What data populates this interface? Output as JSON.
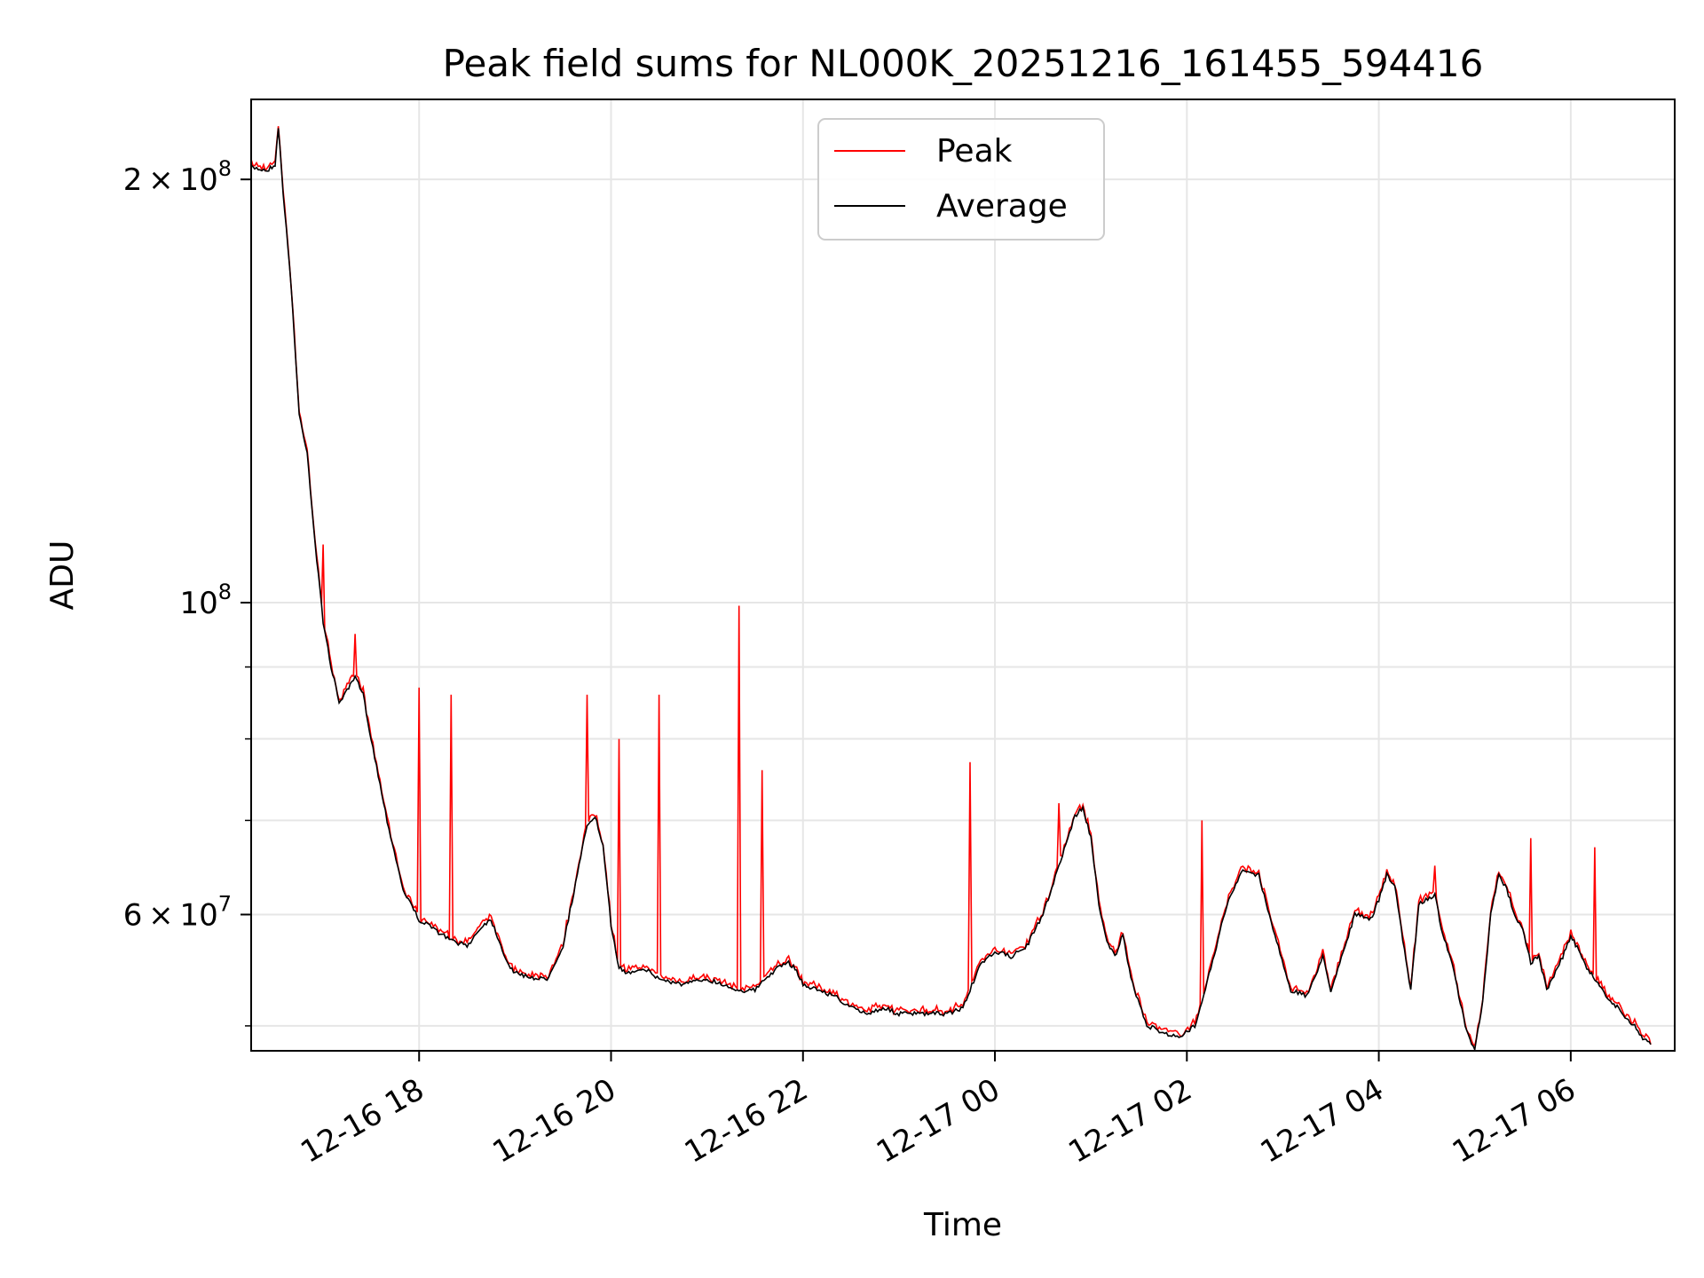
{
  "chart_data": {
    "type": "line",
    "title": "Peak field sums for NL000K_20251216_161455_594416",
    "xlabel": "Time",
    "ylabel": "ADU",
    "yscale": "log",
    "xlim": [
      "2025-12-16 16:15",
      "2025-12-17 07:05"
    ],
    "ylim": [
      48000000,
      228000000
    ],
    "x_ticks": [
      "12-16 18",
      "12-16 20",
      "12-16 22",
      "12-17 00",
      "12-17 02",
      "12-17 04",
      "12-17 06"
    ],
    "y_ticks": [
      {
        "value": 60000000,
        "base": "6",
        "exp": "7",
        "label": "6 × 10^7"
      },
      {
        "value": 100000000,
        "base": "",
        "exp": "8",
        "label": "10^8"
      },
      {
        "value": 200000000,
        "base": "2",
        "exp": "8",
        "label": "2 × 10^8"
      }
    ],
    "grid": true,
    "legend_position": "top-center",
    "series": [
      {
        "name": "Peak",
        "color": "#ff0000"
      },
      {
        "name": "Average",
        "color": "#000000"
      }
    ],
    "average": [
      [
        "2025-12-16 16:15",
        204000000
      ],
      [
        "2025-12-16 16:25",
        203000000
      ],
      [
        "2025-12-16 16:30",
        205000000
      ],
      [
        "2025-12-16 16:32",
        218000000
      ],
      [
        "2025-12-16 16:35",
        196000000
      ],
      [
        "2025-12-16 16:40",
        168000000
      ],
      [
        "2025-12-16 16:45",
        136000000
      ],
      [
        "2025-12-16 16:50",
        128000000
      ],
      [
        "2025-12-16 16:55",
        110000000
      ],
      [
        "2025-12-16 17:00",
        97000000
      ],
      [
        "2025-12-16 17:05",
        90000000
      ],
      [
        "2025-12-16 17:10",
        85000000
      ],
      [
        "2025-12-16 17:15",
        86500000
      ],
      [
        "2025-12-16 17:20",
        88500000
      ],
      [
        "2025-12-16 17:25",
        86000000
      ],
      [
        "2025-12-16 17:30",
        80000000
      ],
      [
        "2025-12-16 17:40",
        70000000
      ],
      [
        "2025-12-16 17:50",
        62500000
      ],
      [
        "2025-12-16 18:00",
        59500000
      ],
      [
        "2025-12-16 18:10",
        58500000
      ],
      [
        "2025-12-16 18:20",
        57500000
      ],
      [
        "2025-12-16 18:30",
        57000000
      ],
      [
        "2025-12-16 18:40",
        59000000
      ],
      [
        "2025-12-16 18:45",
        59500000
      ],
      [
        "2025-12-16 18:50",
        57500000
      ],
      [
        "2025-12-16 18:55",
        55500000
      ],
      [
        "2025-12-16 19:00",
        54500000
      ],
      [
        "2025-12-16 19:15",
        54000000
      ],
      [
        "2025-12-16 19:20",
        54000000
      ],
      [
        "2025-12-16 19:30",
        57000000
      ],
      [
        "2025-12-16 19:40",
        65000000
      ],
      [
        "2025-12-16 19:45",
        69500000
      ],
      [
        "2025-12-16 19:50",
        70500000
      ],
      [
        "2025-12-16 19:55",
        67000000
      ],
      [
        "2025-12-16 20:00",
        59000000
      ],
      [
        "2025-12-16 20:05",
        55000000
      ],
      [
        "2025-12-16 20:10",
        54500000
      ],
      [
        "2025-12-16 20:20",
        55000000
      ],
      [
        "2025-12-16 20:30",
        54000000
      ],
      [
        "2025-12-16 20:45",
        53500000
      ],
      [
        "2025-12-16 21:00",
        54000000
      ],
      [
        "2025-12-16 21:10",
        53500000
      ],
      [
        "2025-12-16 21:20",
        53000000
      ],
      [
        "2025-12-16 21:30",
        53000000
      ],
      [
        "2025-12-16 21:40",
        54500000
      ],
      [
        "2025-12-16 21:50",
        55500000
      ],
      [
        "2025-12-16 21:55",
        55000000
      ],
      [
        "2025-12-16 22:00",
        53500000
      ],
      [
        "2025-12-16 22:10",
        53000000
      ],
      [
        "2025-12-16 22:20",
        52500000
      ],
      [
        "2025-12-16 22:30",
        51500000
      ],
      [
        "2025-12-16 22:40",
        51000000
      ],
      [
        "2025-12-16 22:50",
        51500000
      ],
      [
        "2025-12-16 23:00",
        51000000
      ],
      [
        "2025-12-16 23:15",
        51000000
      ],
      [
        "2025-12-16 23:30",
        51000000
      ],
      [
        "2025-12-16 23:40",
        51500000
      ],
      [
        "2025-12-16 23:50",
        55000000
      ],
      [
        "2025-12-17 00:00",
        56500000
      ],
      [
        "2025-12-17 00:10",
        56000000
      ],
      [
        "2025-12-17 00:20",
        57000000
      ],
      [
        "2025-12-17 00:30",
        60000000
      ],
      [
        "2025-12-17 00:40",
        65000000
      ],
      [
        "2025-12-17 00:50",
        70500000
      ],
      [
        "2025-12-17 00:55",
        71500000
      ],
      [
        "2025-12-17 01:00",
        68000000
      ],
      [
        "2025-12-17 01:05",
        61000000
      ],
      [
        "2025-12-17 01:10",
        57500000
      ],
      [
        "2025-12-17 01:15",
        56000000
      ],
      [
        "2025-12-17 01:20",
        58000000
      ],
      [
        "2025-12-17 01:25",
        54000000
      ],
      [
        "2025-12-17 01:35",
        50000000
      ],
      [
        "2025-12-17 01:45",
        49500000
      ],
      [
        "2025-12-17 01:55",
        49000000
      ],
      [
        "2025-12-17 02:05",
        50000000
      ],
      [
        "2025-12-17 02:15",
        55000000
      ],
      [
        "2025-12-17 02:25",
        61000000
      ],
      [
        "2025-12-17 02:35",
        64500000
      ],
      [
        "2025-12-17 02:45",
        64000000
      ],
      [
        "2025-12-17 02:55",
        58000000
      ],
      [
        "2025-12-17 03:05",
        53000000
      ],
      [
        "2025-12-17 03:15",
        52500000
      ],
      [
        "2025-12-17 03:25",
        56000000
      ],
      [
        "2025-12-17 03:30",
        53000000
      ],
      [
        "2025-12-17 03:40",
        57500000
      ],
      [
        "2025-12-17 03:45",
        60000000
      ],
      [
        "2025-12-17 03:55",
        59500000
      ],
      [
        "2025-12-17 04:00",
        61500000
      ],
      [
        "2025-12-17 04:05",
        64000000
      ],
      [
        "2025-12-17 04:10",
        63000000
      ],
      [
        "2025-12-17 04:15",
        57500000
      ],
      [
        "2025-12-17 04:20",
        53000000
      ],
      [
        "2025-12-17 04:25",
        61000000
      ],
      [
        "2025-12-17 04:35",
        62000000
      ],
      [
        "2025-12-17 04:40",
        58000000
      ],
      [
        "2025-12-17 04:45",
        56000000
      ],
      [
        "2025-12-17 04:50",
        52500000
      ],
      [
        "2025-12-17 04:55",
        49500000
      ],
      [
        "2025-12-17 05:00",
        48000000
      ],
      [
        "2025-12-17 05:05",
        52000000
      ],
      [
        "2025-12-17 05:10",
        60000000
      ],
      [
        "2025-12-17 05:15",
        64000000
      ],
      [
        "2025-12-17 05:20",
        62500000
      ],
      [
        "2025-12-17 05:25",
        60000000
      ],
      [
        "2025-12-17 05:30",
        58500000
      ],
      [
        "2025-12-17 05:35",
        55500000
      ],
      [
        "2025-12-17 05:40",
        56000000
      ],
      [
        "2025-12-17 05:45",
        53000000
      ],
      [
        "2025-12-17 05:55",
        56000000
      ],
      [
        "2025-12-17 06:00",
        58000000
      ],
      [
        "2025-12-17 06:05",
        56500000
      ],
      [
        "2025-12-17 06:10",
        55000000
      ],
      [
        "2025-12-17 06:15",
        54000000
      ],
      [
        "2025-12-17 06:20",
        53000000
      ],
      [
        "2025-12-17 06:25",
        52000000
      ],
      [
        "2025-12-17 06:30",
        51500000
      ],
      [
        "2025-12-17 06:35",
        50500000
      ],
      [
        "2025-12-17 06:40",
        50000000
      ],
      [
        "2025-12-17 06:45",
        49000000
      ],
      [
        "2025-12-17 06:50",
        48500000
      ]
    ],
    "peaks": [
      [
        "2025-12-16 17:00",
        110000000
      ],
      [
        "2025-12-16 17:20",
        95000000
      ],
      [
        "2025-12-16 18:00",
        87000000
      ],
      [
        "2025-12-16 18:20",
        86000000
      ],
      [
        "2025-12-16 19:45",
        86000000
      ],
      [
        "2025-12-16 20:05",
        80000000
      ],
      [
        "2025-12-16 20:30",
        86000000
      ],
      [
        "2025-12-16 21:20",
        99500000
      ],
      [
        "2025-12-16 21:35",
        76000000
      ],
      [
        "2025-12-16 23:45",
        77000000
      ],
      [
        "2025-12-17 00:40",
        72000000
      ],
      [
        "2025-12-17 02:10",
        70000000
      ],
      [
        "2025-12-17 04:35",
        65000000
      ],
      [
        "2025-12-17 05:35",
        68000000
      ],
      [
        "2025-12-17 06:15",
        67000000
      ]
    ]
  }
}
